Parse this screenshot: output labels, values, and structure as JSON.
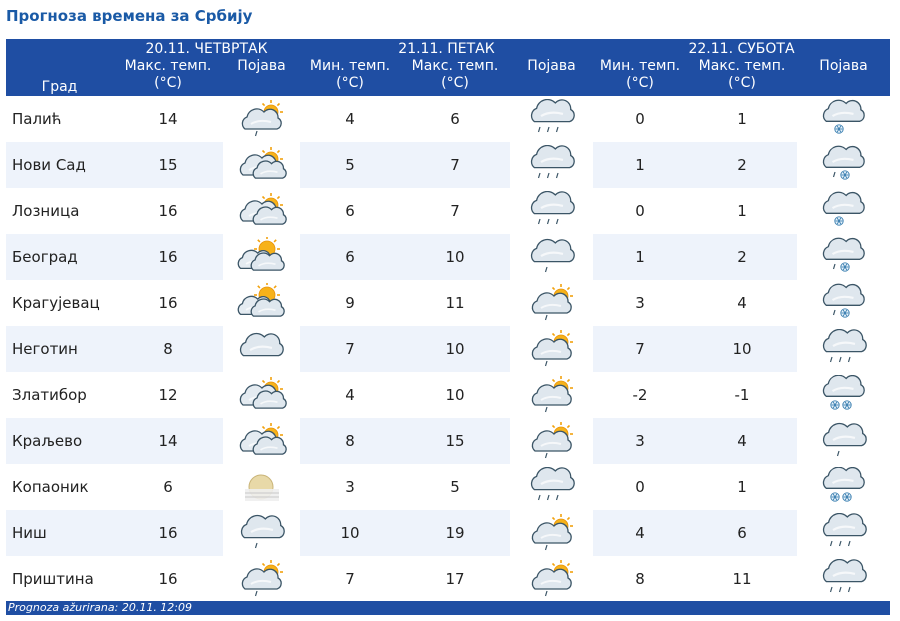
{
  "page": {
    "title": "Прогноза времена за Србију",
    "footer": "Prognoza ažurirana:  20.11. 12:09"
  },
  "header": {
    "city": "Град",
    "days": [
      {
        "date": "20.11. ЧЕТВРТАК",
        "max": "Макс. темп. (°C)",
        "icon": "Појава"
      },
      {
        "date": "21.11. ПЕТАК",
        "min": "Мин. темп. (°C)",
        "max": "Макс. темп. (°C)",
        "icon": "Појава"
      },
      {
        "date": "22.11. СУБОТА",
        "min": "Мин. темп. (°C)",
        "max": "Макс. темп. (°C)",
        "icon": "Појава"
      }
    ]
  },
  "rows": [
    {
      "city": "Палић",
      "d1max": "14",
      "d1icon": "partly-cloudy-drizzle-icon",
      "d2min": "4",
      "d2max": "6",
      "d2icon": "rain-icon",
      "d3min": "0",
      "d3max": "1",
      "d3icon": "snow-icon"
    },
    {
      "city": "Нови Сад",
      "d1max": "15",
      "d1icon": "partly-cloudy-icon",
      "d2min": "5",
      "d2max": "7",
      "d2icon": "rain-icon",
      "d3min": "1",
      "d3max": "2",
      "d3icon": "sleet-icon"
    },
    {
      "city": "Лозница",
      "d1max": "16",
      "d1icon": "partly-cloudy-icon",
      "d2min": "6",
      "d2max": "7",
      "d2icon": "rain-icon",
      "d3min": "0",
      "d3max": "1",
      "d3icon": "snow-icon"
    },
    {
      "city": "Београд",
      "d1max": "16",
      "d1icon": "sun-behind-clouds-icon",
      "d2min": "6",
      "d2max": "10",
      "d2icon": "drizzle-icon",
      "d3min": "1",
      "d3max": "2",
      "d3icon": "sleet-icon"
    },
    {
      "city": "Крагујевац",
      "d1max": "16",
      "d1icon": "sun-behind-clouds-icon",
      "d2min": "9",
      "d2max": "11",
      "d2icon": "partly-cloudy-drizzle-icon",
      "d3min": "3",
      "d3max": "4",
      "d3icon": "sleet-icon"
    },
    {
      "city": "Неготин",
      "d1max": "8",
      "d1icon": "cloudy-icon",
      "d2min": "7",
      "d2max": "10",
      "d2icon": "partly-cloudy-drizzle-icon",
      "d3min": "7",
      "d3max": "10",
      "d3icon": "rain-icon"
    },
    {
      "city": "Златибор",
      "d1max": "12",
      "d1icon": "partly-cloudy-icon",
      "d2min": "4",
      "d2max": "10",
      "d2icon": "partly-cloudy-drizzle-icon",
      "d3min": "-2",
      "d3max": "-1",
      "d3icon": "heavy-snow-icon"
    },
    {
      "city": "Краљево",
      "d1max": "14",
      "d1icon": "partly-cloudy-icon",
      "d2min": "8",
      "d2max": "15",
      "d2icon": "partly-cloudy-drizzle-icon",
      "d3min": "3",
      "d3max": "4",
      "d3icon": "drizzle-icon"
    },
    {
      "city": "Копаоник",
      "d1max": "6",
      "d1icon": "fog-sun-icon",
      "d2min": "3",
      "d2max": "5",
      "d2icon": "rain-icon",
      "d3min": "0",
      "d3max": "1",
      "d3icon": "heavy-snow-icon"
    },
    {
      "city": "Ниш",
      "d1max": "16",
      "d1icon": "drizzle-icon",
      "d2min": "10",
      "d2max": "19",
      "d2icon": "partly-cloudy-drizzle-icon",
      "d3min": "4",
      "d3max": "6",
      "d3icon": "rain-icon"
    },
    {
      "city": "Приштина",
      "d1max": "16",
      "d1icon": "partly-cloudy-drizzle-icon",
      "d2min": "7",
      "d2max": "17",
      "d2icon": "partly-cloudy-drizzle-icon",
      "d3min": "8",
      "d3max": "11",
      "d3icon": "rain-icon"
    }
  ],
  "colors": {
    "header_bg": "#1f4ea3",
    "title_text": "#1a5aa6",
    "stripe": "#eef3fb"
  }
}
